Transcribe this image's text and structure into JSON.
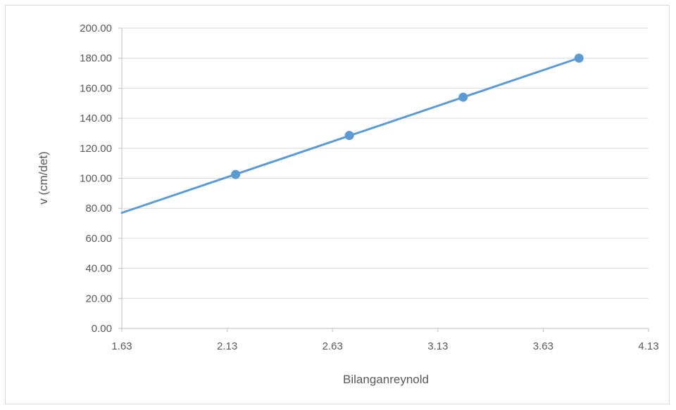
{
  "chart_data": {
    "type": "scatter",
    "title": "",
    "xlabel": "Bilanganreynold",
    "ylabel": "v (cm/det)",
    "xlim": [
      1.63,
      4.13
    ],
    "ylim": [
      0,
      200
    ],
    "x_ticks": [
      "1.63",
      "2.13",
      "2.63",
      "3.13",
      "3.63",
      "4.13"
    ],
    "y_ticks": [
      "0.00",
      "20.00",
      "40.00",
      "60.00",
      "80.00",
      "100.00",
      "120.00",
      "140.00",
      "160.00",
      "180.00",
      "200.00"
    ],
    "grid": "horizontal",
    "legend": "none",
    "series": [
      {
        "x": [
          2.17,
          2.71,
          3.25,
          3.8
        ],
        "y": [
          102.5,
          128.5,
          154.0,
          180.0
        ],
        "color": "#5b9bd5",
        "trendline": {
          "type": "linear",
          "x_range": [
            1.63,
            3.8
          ]
        }
      }
    ],
    "colors": {
      "axis": "#bfbfbf",
      "grid": "#d9d9d9",
      "text": "#595959",
      "series": "#5b9bd5"
    }
  }
}
